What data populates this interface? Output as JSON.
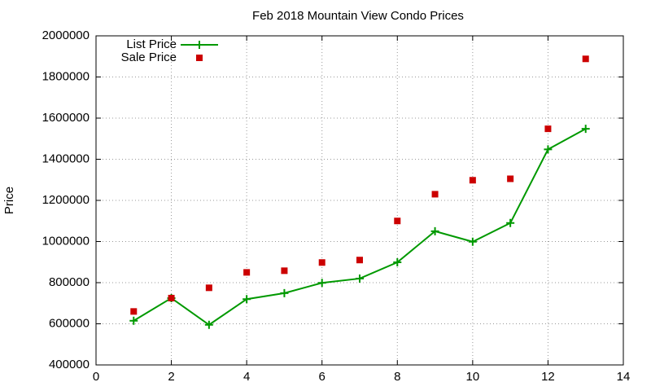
{
  "chart_data": {
    "type": "line",
    "title": "Feb 2018 Mountain View Condo Prices",
    "y_label": "Price",
    "x": [
      1,
      2,
      3,
      4,
      5,
      6,
      7,
      8,
      9,
      10,
      11,
      12,
      13
    ],
    "series": [
      {
        "name": "List Price",
        "color": "#009900",
        "style": "linespoints",
        "values": [
          615000,
          725000,
          595000,
          720000,
          749000,
          799000,
          820000,
          899000,
          1050000,
          999000,
          1090000,
          1448000,
          1548000
        ]
      },
      {
        "name": "Sale Price",
        "color": "#cc0000",
        "style": "points",
        "values": [
          660000,
          725000,
          775000,
          850000,
          858000,
          898000,
          910000,
          1100000,
          1230000,
          1298000,
          1305000,
          1548000,
          1888000
        ]
      }
    ],
    "xlim": [
      0,
      14
    ],
    "xticks": [
      0,
      2,
      4,
      6,
      8,
      10,
      12,
      14
    ],
    "ylim": [
      400000,
      2000000
    ],
    "yticks": [
      400000,
      600000,
      800000,
      1000000,
      1200000,
      1400000,
      1600000,
      1800000,
      2000000
    ],
    "grid": true,
    "legend": "top-left"
  }
}
